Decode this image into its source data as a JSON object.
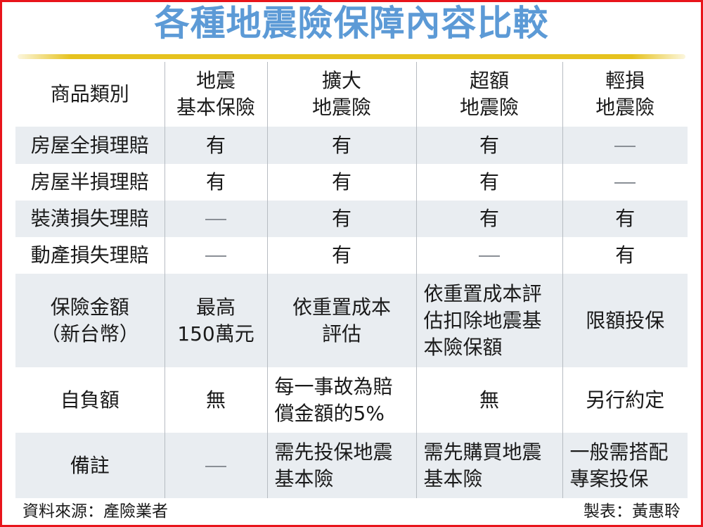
{
  "title": "各種地震險保障內容比較",
  "table": {
    "headers": [
      "商品類別",
      "地震\n基本保險",
      "擴大\n地震險",
      "超額\n地震險",
      "輕損\n地震險"
    ],
    "rows": [
      [
        "房屋全損理賠",
        "有",
        "有",
        "有",
        "—"
      ],
      [
        "房屋半損理賠",
        "有",
        "有",
        "有",
        "—"
      ],
      [
        "裝潢損失理賠",
        "—",
        "有",
        "有",
        "有"
      ],
      [
        "動產損失理賠",
        "—",
        "有",
        "—",
        "有"
      ],
      [
        "保險金額\n（新台幣）",
        "最高\n150萬元",
        "依重置成本\n評估",
        "依重置成本評\n估扣除地震基\n本險保額",
        "限額投保"
      ],
      [
        "自負額",
        "無",
        "每一事故為賠\n償金額的5%",
        "無",
        "另行約定"
      ],
      [
        "備註",
        "—",
        "需先投保地震\n基本險",
        "需先購買地震\n基本險",
        "一般需搭配\n專案投保"
      ]
    ]
  },
  "footer": {
    "source": "資料來源：產險業者",
    "author": "製表：黃惠聆"
  },
  "colors": {
    "title": "#5c9ad6",
    "border": "#e8141b",
    "gold": "#e6c21e",
    "row_shade": "#e9edf1"
  }
}
